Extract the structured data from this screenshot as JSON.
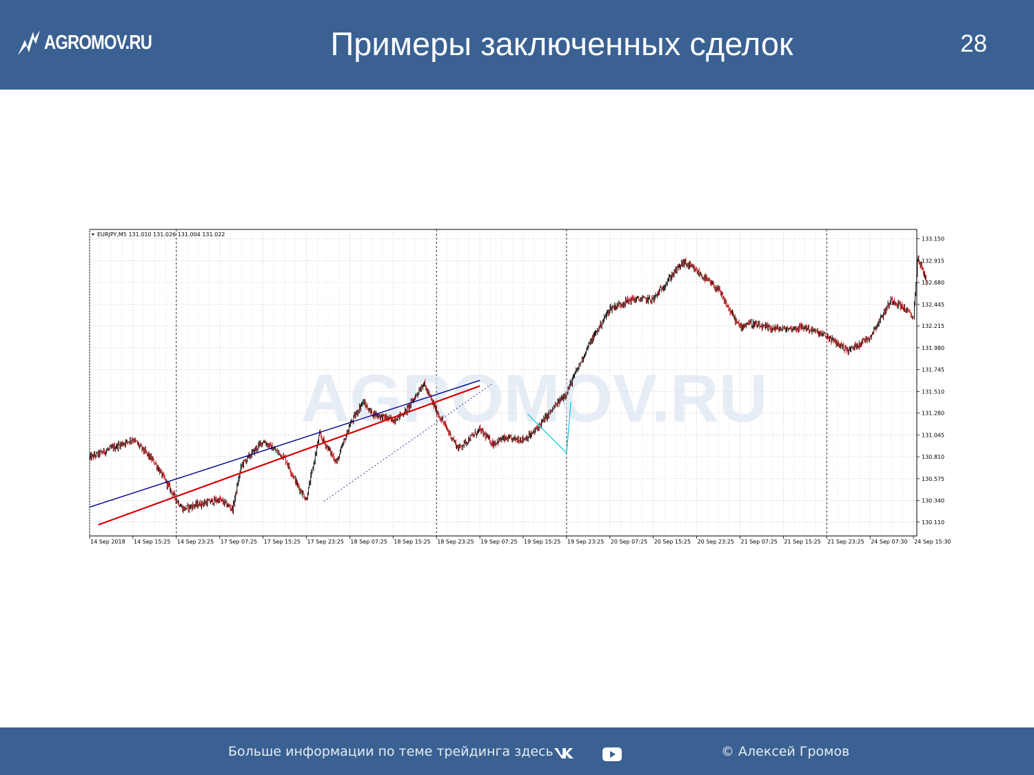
{
  "header": {
    "logo_text": "AGROMOV.RU",
    "title": "Примеры заключенных сделок",
    "page_number": "28"
  },
  "footer": {
    "info_text": "Больше информации по теме трейдинга здесь",
    "copyright": "© Алексей Громов",
    "icons": [
      "vk-icon",
      "youtube-icon"
    ]
  },
  "colors": {
    "brand_blue": "#3a6192",
    "bull_candle": "#000000",
    "bear_candle": "#c00000",
    "channel_blue": "#00008b",
    "channel_red": "#d60000",
    "cyan_line": "#00c8d8"
  },
  "chart_data": {
    "type": "candlestick",
    "symbol_header": "EURJPY,M5  131.010 131.026 131.004 131.022",
    "watermark": "AGROMOV.RU",
    "x_tick_labels": [
      "14 Sep 2018",
      "14 Sep 15:25",
      "14 Sep 23:25",
      "17 Sep 07:25",
      "17 Sep 15:25",
      "17 Sep 23:25",
      "18 Sep 07:25",
      "18 Sep 15:25",
      "18 Sep 23:25",
      "19 Sep 07:25",
      "19 Sep 15:25",
      "19 Sep 23:25",
      "20 Sep 07:25",
      "20 Sep 15:25",
      "20 Sep 23:25",
      "21 Sep 07:25",
      "21 Sep 15:25",
      "21 Sep 23:25",
      "24 Sep 07:30",
      "24 Sep 15:30"
    ],
    "y_tick_labels": [
      "133.150",
      "132.915",
      "132.680",
      "132.445",
      "132.215",
      "131.980",
      "131.745",
      "131.510",
      "131.280",
      "131.045",
      "130.810",
      "130.575",
      "130.340",
      "130.110"
    ],
    "ylim": [
      130.02,
      133.25
    ],
    "session_separators": [
      "14 Sep 23:25",
      "18 Sep 23:25",
      "19 Sep 23:25",
      "21 Sep 23:25"
    ],
    "price_path": {
      "x_index": [
        0,
        1.0,
        1.5,
        2.0,
        2.15,
        2.5,
        3.0,
        3.3,
        3.5,
        4.0,
        4.5,
        4.8,
        5.0,
        5.3,
        5.7,
        6.0,
        6.3,
        6.5,
        7.0,
        7.3,
        7.7,
        8.0,
        8.5,
        9.0,
        9.3,
        9.5,
        10.0,
        10.2,
        11.0,
        11.5,
        12.0,
        12.5,
        13.0,
        13.5,
        13.7,
        14.0,
        14.5,
        14.8,
        15.0,
        15.2,
        15.5,
        16.0,
        16.5,
        17.0,
        17.5,
        18.0,
        18.5,
        18.8,
        19.0,
        19.1,
        19.3
      ],
      "price": [
        130.8,
        131.0,
        130.75,
        130.35,
        130.25,
        130.3,
        130.35,
        130.25,
        130.72,
        130.98,
        130.8,
        130.5,
        130.35,
        131.05,
        130.75,
        131.15,
        131.4,
        131.28,
        131.2,
        131.3,
        131.6,
        131.3,
        130.9,
        131.1,
        130.95,
        131.0,
        131.0,
        131.05,
        131.5,
        132.0,
        132.4,
        132.5,
        132.5,
        132.8,
        132.9,
        132.8,
        132.6,
        132.35,
        132.2,
        132.25,
        132.2,
        132.18,
        132.2,
        132.1,
        131.95,
        132.1,
        132.5,
        132.4,
        132.3,
        132.95,
        132.7
      ]
    },
    "trend_lines": [
      {
        "name": "channel-upper",
        "color": "#00008b",
        "x_index": [
          0,
          9.0
        ],
        "price": [
          130.27,
          131.63
        ]
      },
      {
        "name": "channel-lower",
        "color": "#d60000",
        "x_index": [
          0.2,
          9.0
        ],
        "price": [
          130.08,
          131.57
        ]
      },
      {
        "name": "dotted-support",
        "color": "#00008b",
        "x_index": [
          5.4,
          9.3
        ],
        "price": [
          130.33,
          131.6
        ]
      },
      {
        "name": "cyan-down",
        "color": "#00c8d8",
        "x_index": [
          10.1,
          11.0
        ],
        "price": [
          131.27,
          130.85
        ]
      },
      {
        "name": "cyan-up",
        "color": "#00c8d8",
        "x_index": [
          11.0,
          11.1
        ],
        "price": [
          130.85,
          131.4
        ]
      }
    ],
    "grid": true,
    "legend": false
  }
}
